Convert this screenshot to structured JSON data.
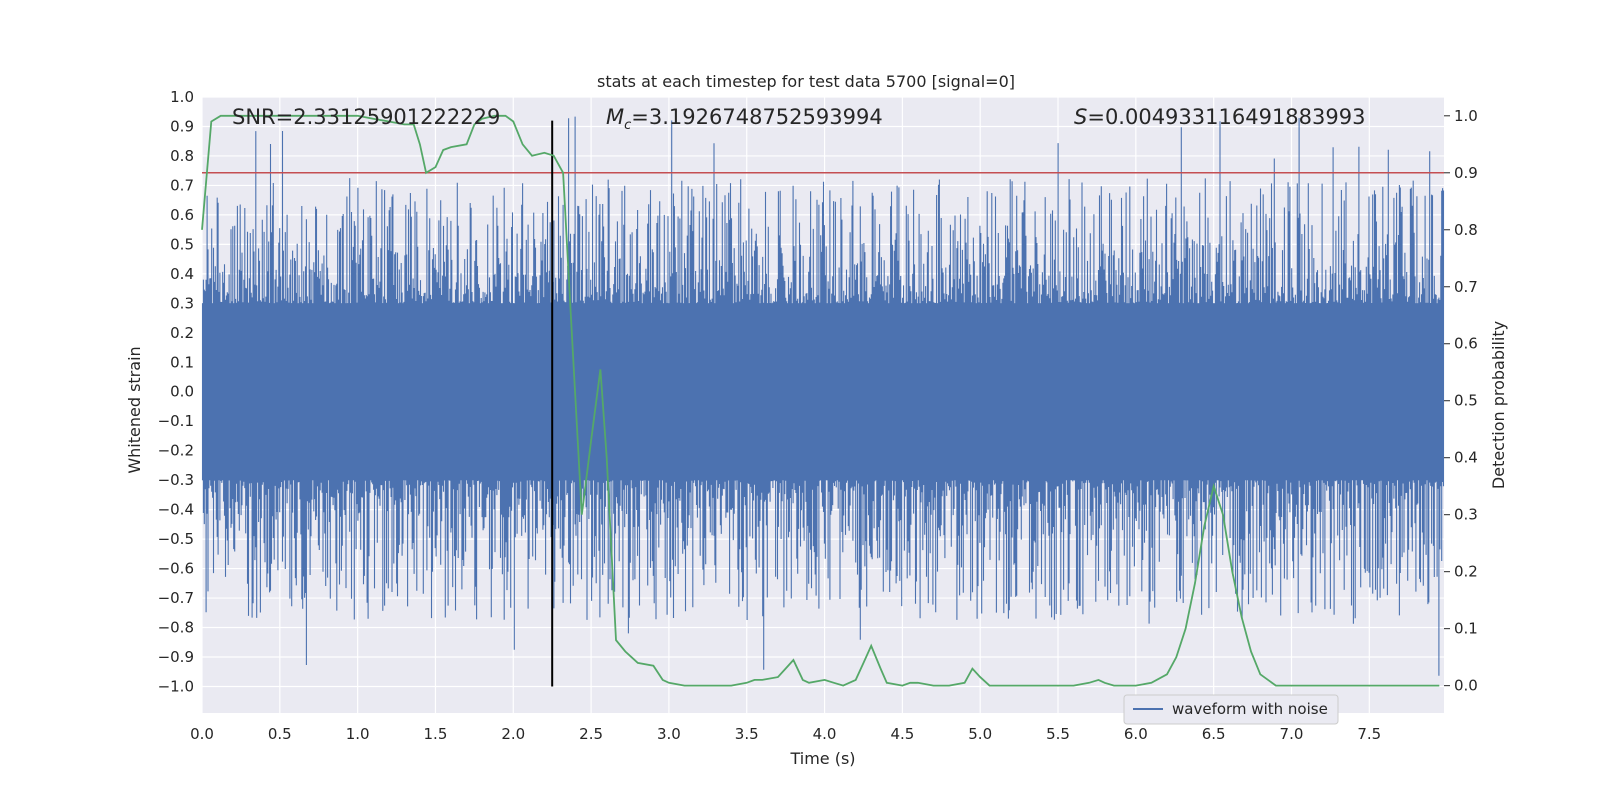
{
  "chart_data": {
    "type": "line",
    "title": "stats at each timestep for test data 5700 [signal=0]",
    "xlabel": "Time (s)",
    "ylabel_left": "Whitened strain",
    "ylabel_right": "Detection probability",
    "xlim": [
      0.0,
      7.98
    ],
    "ylim_left": [
      -1.09,
      1.0
    ],
    "ylim_right": [
      -0.048,
      1.033
    ],
    "x_ticks": [
      0.0,
      0.5,
      1.0,
      1.5,
      2.0,
      2.5,
      3.0,
      3.5,
      4.0,
      4.5,
      5.0,
      5.5,
      6.0,
      6.5,
      7.0,
      7.5
    ],
    "x_tick_labels": [
      "0.0",
      "0.5",
      "1.0",
      "1.5",
      "2.0",
      "2.5",
      "3.0",
      "3.5",
      "4.0",
      "4.5",
      "5.0",
      "5.5",
      "6.0",
      "6.5",
      "7.0",
      "7.5"
    ],
    "y_left_ticks": [
      1.0,
      0.9,
      0.8,
      0.7,
      0.6,
      0.5,
      0.4,
      0.3,
      0.2,
      0.1,
      0.0,
      -0.1,
      -0.2,
      -0.3,
      -0.4,
      -0.5,
      -0.6,
      -0.7,
      -0.8,
      -0.9,
      -1.0
    ],
    "y_left_tick_labels": [
      "1.0",
      "0.9",
      "0.8",
      "0.7",
      "0.6",
      "0.5",
      "0.4",
      "0.3",
      "0.2",
      "0.1",
      "0.0",
      "−0.1",
      "−0.2",
      "−0.3",
      "−0.4",
      "−0.5",
      "−0.6",
      "−0.7",
      "−0.8",
      "−0.9",
      "−1.0"
    ],
    "y_right_ticks": [
      1.0,
      0.9,
      0.8,
      0.7,
      0.6,
      0.5,
      0.4,
      0.3,
      0.2,
      0.1,
      0.0
    ],
    "y_right_tick_labels": [
      "1.0",
      "0.9",
      "0.8",
      "0.7",
      "0.6",
      "0.5",
      "0.4",
      "0.3",
      "0.2",
      "0.1",
      "0.0"
    ],
    "grid": true,
    "legend": {
      "location": "lower-right",
      "entries": [
        "waveform with noise"
      ]
    },
    "annotations": {
      "snr": "SNR=2.33125901222229",
      "mc_symbol": "M",
      "mc_subscript": "c",
      "mc_value": "=3.1926748752593994",
      "s_symbol": "S",
      "s_value": "=0.004933116491883993"
    },
    "series": [
      {
        "name": "waveform with noise",
        "axis": "left",
        "style": "noise",
        "description_values": {
          "core_amplitude": 0.3,
          "typical_peak": 0.55,
          "max": 0.94,
          "min": -1.0
        },
        "color": "#4c72b0"
      },
      {
        "name": "Detection probability",
        "axis": "right",
        "color": "#55a868",
        "x": [
          0.0,
          0.06,
          0.12,
          0.2,
          0.3,
          0.4,
          0.5,
          0.6,
          0.7,
          0.8,
          0.9,
          1.0,
          1.1,
          1.2,
          1.3,
          1.36,
          1.4,
          1.44,
          1.5,
          1.55,
          1.6,
          1.7,
          1.75,
          1.8,
          1.88,
          1.95,
          2.0,
          2.06,
          2.12,
          2.2,
          2.26,
          2.32,
          2.38,
          2.44,
          2.5,
          2.56,
          2.6,
          2.66,
          2.72,
          2.8,
          2.9,
          2.96,
          3.0,
          3.1,
          3.2,
          3.3,
          3.4,
          3.5,
          3.55,
          3.6,
          3.7,
          3.75,
          3.8,
          3.86,
          3.9,
          4.0,
          4.06,
          4.12,
          4.2,
          4.25,
          4.3,
          4.36,
          4.4,
          4.5,
          4.55,
          4.6,
          4.7,
          4.8,
          4.9,
          4.95,
          5.0,
          5.06,
          5.12,
          5.2,
          5.3,
          5.4,
          5.5,
          5.6,
          5.7,
          5.76,
          5.8,
          5.86,
          5.9,
          6.0,
          6.1,
          6.2,
          6.26,
          6.32,
          6.38,
          6.44,
          6.5,
          6.56,
          6.62,
          6.68,
          6.74,
          6.8,
          6.9,
          7.0,
          7.1,
          7.2,
          7.3,
          7.4,
          7.5,
          7.6,
          7.7,
          7.8,
          7.9,
          7.95
        ],
        "values": [
          0.8,
          0.99,
          1.0,
          1.0,
          1.0,
          1.0,
          1.0,
          1.0,
          1.0,
          1.0,
          1.0,
          1.0,
          0.995,
          0.99,
          0.985,
          0.985,
          0.95,
          0.9,
          0.91,
          0.94,
          0.945,
          0.95,
          0.985,
          0.995,
          1.0,
          1.0,
          0.99,
          0.95,
          0.93,
          0.935,
          0.93,
          0.9,
          0.6,
          0.3,
          0.43,
          0.555,
          0.4,
          0.08,
          0.06,
          0.04,
          0.035,
          0.01,
          0.005,
          0.0,
          0.0,
          0.0,
          0.0,
          0.005,
          0.01,
          0.01,
          0.015,
          0.03,
          0.045,
          0.01,
          0.005,
          0.01,
          0.005,
          0.0,
          0.01,
          0.04,
          0.07,
          0.03,
          0.005,
          0.0,
          0.005,
          0.005,
          0.0,
          0.0,
          0.005,
          0.03,
          0.015,
          0.0,
          0.0,
          0.0,
          0.0,
          0.0,
          0.0,
          0.0,
          0.005,
          0.01,
          0.005,
          0.0,
          0.0,
          0.0,
          0.005,
          0.02,
          0.05,
          0.1,
          0.18,
          0.28,
          0.35,
          0.3,
          0.2,
          0.12,
          0.06,
          0.02,
          0.0,
          0.0,
          0.0,
          0.0,
          0.0,
          0.0,
          0.0,
          0.0,
          0.0,
          0.0,
          0.0,
          0.0
        ]
      },
      {
        "name": "threshold",
        "axis": "right",
        "type": "hline",
        "value": 0.9,
        "color": "#c44e52"
      },
      {
        "name": "signal marker",
        "axis": "left",
        "type": "vline",
        "x": 2.25,
        "range": [
          -1.0,
          0.92
        ],
        "color": "#000000"
      }
    ]
  }
}
